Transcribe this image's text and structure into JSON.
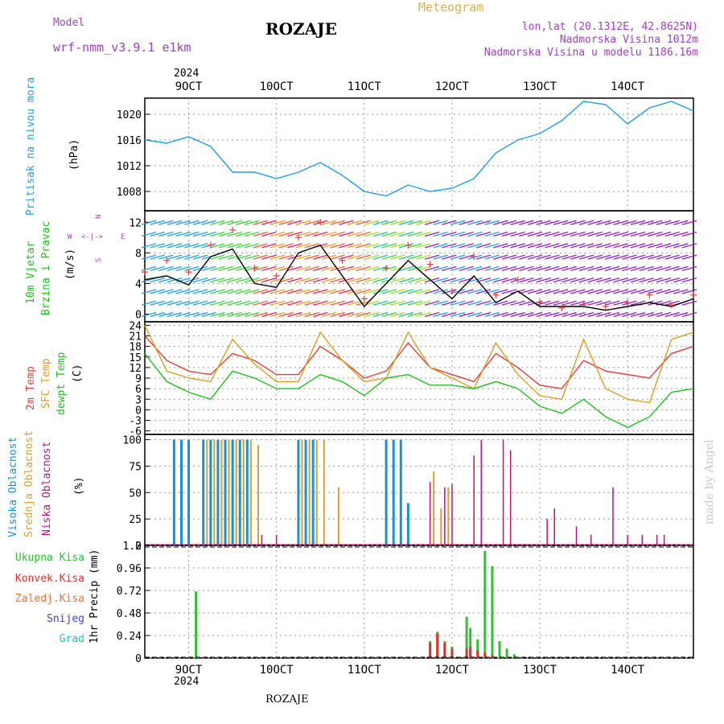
{
  "header": {
    "model_label": "Model",
    "model_name": "wrf-nmm_v3.9.1  e1km",
    "title": "ROZAJE",
    "meteogram_label": "Meteogram",
    "lonlat": "lon,lat (20.1312E, 42.8625N)",
    "altitude": "Nadmorska Visina 1012m",
    "model_altitude": "Nadmorska Visina u modelu 1186.16m",
    "footer_title": "ROZAJE",
    "credit": "made by Angel"
  },
  "colors": {
    "pressure": "#1fa0e0",
    "wind_speed_line": "#000000",
    "temp_2m": "#e04040",
    "sfc_temp": "#d8a020",
    "dewpt": "#20c020",
    "high_cloud": "#1890d8",
    "mid_cloud": "#d8a030",
    "low_cloud": "#c01080",
    "total_precip": "#30c030",
    "convective_precip": "#e03030",
    "label_purple": "#a040c0",
    "label_gold": "#e0b040"
  },
  "time_axis": {
    "year": "2024",
    "days": [
      "9OCT",
      "10OCT",
      "11OCT",
      "12OCT",
      "13OCT",
      "14OCT"
    ],
    "hours_from_9oct_start": "",
    "start": "2024-10-08 12:00",
    "end": "2024-10-14 18:00"
  },
  "chart_data": [
    {
      "type": "line",
      "panel": "pressure",
      "ylabel_1": "Pritisak na nivou mora",
      "ylabel_2": "(hPa)",
      "ylim": [
        1005,
        1022.5
      ],
      "yticks": [
        1008,
        1012,
        1016,
        1020
      ],
      "grid": true,
      "series": [
        {
          "name": "",
          "x": [
            "10-08 12:00",
            "10-08 18:00",
            "10-09 00:00",
            "10-09 06:00",
            "10-09 12:00",
            "10-09 18:00",
            "10-10 00:00",
            "10-10 06:00",
            "10-10 12:00",
            "10-10 18:00",
            "10-11 00:00",
            "10-11 06:00",
            "10-11 12:00",
            "10-11 18:00",
            "10-12 00:00",
            "10-12 06:00",
            "10-12 12:00",
            "10-12 18:00",
            "10-13 00:00",
            "10-13 06:00",
            "10-13 12:00",
            "10-13 18:00",
            "10-14 00:00",
            "10-14 06:00",
            "10-14 12:00",
            "10-14 18:00"
          ],
          "y": [
            1016,
            1015.5,
            1016.5,
            1015,
            1011,
            1011,
            1010,
            1011,
            1012.5,
            1010.5,
            1008,
            1007.3,
            1009,
            1008,
            1008.5,
            1010,
            1014,
            1016,
            1017,
            1019,
            1022,
            1021.5,
            1018.5,
            1021,
            1022,
            1020.5
          ]
        }
      ]
    },
    {
      "type": "line",
      "panel": "wind",
      "ylabel_1": "10m Vjetar",
      "ylabel_2": "Brzina i Pravac",
      "ylabel_3": "(m/s)",
      "compass": [
        "N",
        "W",
        "E",
        "S"
      ],
      "ylim": [
        -1,
        13.5
      ],
      "yticks": [
        0,
        4,
        8,
        12
      ],
      "grid": true,
      "series": [
        {
          "name": "",
          "x": [
            "10-08 12:00",
            "10-08 18:00",
            "10-09 00:00",
            "10-09 06:00",
            "10-09 12:00",
            "10-09 18:00",
            "10-10 00:00",
            "10-10 06:00",
            "10-10 12:00",
            "10-10 18:00",
            "10-11 00:00",
            "10-11 06:00",
            "10-11 12:00",
            "10-11 18:00",
            "10-12 00:00",
            "10-12 06:00",
            "10-12 12:00",
            "10-12 18:00",
            "10-13 00:00",
            "10-13 06:00",
            "10-13 12:00",
            "10-13 18:00",
            "10-14 00:00",
            "10-14 06:00",
            "10-14 12:00",
            "10-14 18:00"
          ],
          "y": [
            4.5,
            5.0,
            3.8,
            7.5,
            8.5,
            4.0,
            3.5,
            8.0,
            9.0,
            5.0,
            1.0,
            4.0,
            7.0,
            4.5,
            2.0,
            5.0,
            1.5,
            3.0,
            1.0,
            1.0,
            1.0,
            0.5,
            1.0,
            1.5,
            1.0,
            2.0
          ]
        },
        {
          "name": "",
          "marker": "plus",
          "x": [
            "10-08 12:00",
            "10-08 18:00",
            "10-09 00:00",
            "10-09 06:00",
            "10-09 12:00",
            "10-09 18:00",
            "10-10 00:00",
            "10-10 06:00",
            "10-10 12:00",
            "10-10 18:00",
            "10-11 00:00",
            "10-11 06:00",
            "10-11 12:00",
            "10-11 18:00",
            "10-12 00:00",
            "10-12 06:00",
            "10-12 12:00",
            "10-12 18:00",
            "10-13 00:00",
            "10-13 06:00",
            "10-13 12:00",
            "10-13 18:00",
            "10-14 00:00",
            "10-14 06:00",
            "10-14 12:00",
            "10-14 18:00"
          ],
          "y": [
            5.5,
            7.0,
            5.5,
            9.0,
            11.0,
            6.0,
            5.0,
            10.0,
            12.0,
            7.0,
            2.0,
            6.0,
            9.0,
            6.5,
            3.0,
            7.5,
            2.5,
            4.5,
            1.5,
            0.8,
            1.2,
            1.0,
            1.5,
            2.5,
            1.2,
            2.5
          ]
        }
      ]
    },
    {
      "type": "line",
      "panel": "temperature",
      "ylabel_1": "2m Temp",
      "ylabel_2": "SFC Temp",
      "ylabel_3": "dewpt Temp",
      "ylabel_4": "(C)",
      "ylim": [
        -7,
        25
      ],
      "yticks": [
        -6,
        -3,
        0,
        3,
        6,
        9,
        12,
        15,
        18,
        21,
        24
      ],
      "grid": true,
      "series": [
        {
          "name": "2m Temp",
          "x": [
            "10-08 12:00",
            "10-08 18:00",
            "10-09 00:00",
            "10-09 06:00",
            "10-09 12:00",
            "10-09 18:00",
            "10-10 00:00",
            "10-10 06:00",
            "10-10 12:00",
            "10-10 18:00",
            "10-11 00:00",
            "10-11 06:00",
            "10-11 12:00",
            "10-11 18:00",
            "10-12 00:00",
            "10-12 06:00",
            "10-12 12:00",
            "10-12 18:00",
            "10-13 00:00",
            "10-13 06:00",
            "10-13 12:00",
            "10-13 18:00",
            "10-14 00:00",
            "10-14 06:00",
            "10-14 12:00",
            "10-14 18:00"
          ],
          "y": [
            21,
            14,
            11,
            10,
            16,
            14,
            10,
            10,
            18,
            14,
            9,
            11,
            19,
            12,
            10,
            8,
            16,
            12,
            7,
            6,
            14,
            11,
            10,
            9,
            16,
            18
          ]
        },
        {
          "name": "SFC Temp",
          "x": [
            "10-08 12:00",
            "10-08 18:00",
            "10-09 00:00",
            "10-09 06:00",
            "10-09 12:00",
            "10-09 18:00",
            "10-10 00:00",
            "10-10 06:00",
            "10-10 12:00",
            "10-10 18:00",
            "10-11 00:00",
            "10-11 06:00",
            "10-11 12:00",
            "10-11 18:00",
            "10-12 00:00",
            "10-12 06:00",
            "10-12 12:00",
            "10-12 18:00",
            "10-13 00:00",
            "10-13 06:00",
            "10-13 12:00",
            "10-13 18:00",
            "10-14 00:00",
            "10-14 06:00",
            "10-14 12:00",
            "10-14 18:00"
          ],
          "y": [
            24,
            11,
            9,
            8,
            20,
            13,
            8,
            8,
            22,
            14,
            8,
            9,
            22,
            12,
            9,
            6,
            19,
            10,
            4,
            3,
            20,
            6,
            3,
            2,
            20,
            22
          ]
        },
        {
          "name": "dewpt Temp",
          "x": [
            "10-08 12:00",
            "10-08 18:00",
            "10-09 00:00",
            "10-09 06:00",
            "10-09 12:00",
            "10-09 18:00",
            "10-10 00:00",
            "10-10 06:00",
            "10-10 12:00",
            "10-10 18:00",
            "10-11 00:00",
            "10-11 06:00",
            "10-11 12:00",
            "10-11 18:00",
            "10-12 00:00",
            "10-12 06:00",
            "10-12 12:00",
            "10-12 18:00",
            "10-13 00:00",
            "10-13 06:00",
            "10-13 12:00",
            "10-13 18:00",
            "10-14 00:00",
            "10-14 06:00",
            "10-14 12:00",
            "10-14 18:00"
          ],
          "y": [
            16,
            8,
            5,
            3,
            11,
            9,
            6,
            6,
            10,
            8,
            4,
            9,
            10,
            7,
            7,
            6,
            8,
            6,
            1,
            -1,
            3,
            -2,
            -5,
            -2,
            5,
            6
          ]
        }
      ]
    },
    {
      "type": "bar",
      "panel": "clouds",
      "ylabel_1": "Visoka Oblacnost",
      "ylabel_2": "Srednja Oblacnost",
      "ylabel_3": "Niska Oblacnost",
      "ylabel_4": "(%)",
      "ylim": [
        0,
        105
      ],
      "yticks": [
        0,
        25,
        50,
        75,
        100
      ],
      "grid": true,
      "series": [
        {
          "name": "Visoka Oblacnost",
          "x": [
            "10-08 20:00",
            "10-08 22:00",
            "10-09 00:00",
            "10-09 04:00",
            "10-09 06:00",
            "10-09 08:00",
            "10-09 10:00",
            "10-09 12:00",
            "10-09 14:00",
            "10-09 16:00",
            "10-10 06:00",
            "10-10 08:00",
            "10-10 10:00",
            "10-11 06:00",
            "10-11 08:00",
            "10-11 10:00",
            "10-11 12:00"
          ],
          "y": [
            100,
            100,
            100,
            100,
            100,
            100,
            100,
            100,
            100,
            100,
            100,
            100,
            100,
            100,
            100,
            100,
            40
          ]
        },
        {
          "name": "Srednja Oblacnost",
          "x": [
            "10-09 05:00",
            "10-09 07:00",
            "10-09 09:00",
            "10-09 11:00",
            "10-09 13:00",
            "10-09 15:00",
            "10-09 17:00",
            "10-09 19:00",
            "10-10 07:00",
            "10-10 09:00",
            "10-10 11:00",
            "10-10 13:00",
            "10-10 17:00",
            "10-11 19:00",
            "10-11 21:00",
            "10-11 23:00"
          ],
          "y": [
            100,
            100,
            100,
            100,
            100,
            100,
            100,
            95,
            100,
            100,
            100,
            100,
            55,
            70,
            35,
            55
          ]
        },
        {
          "name": "Niska Oblacnost",
          "x": [
            "10-09 20:00",
            "10-10 00:00",
            "10-11 18:00",
            "10-11 22:00",
            "10-12 00:00",
            "10-12 06:00",
            "10-12 08:00",
            "10-12 14:00",
            "10-12 16:00",
            "10-13 02:00",
            "10-13 04:00",
            "10-13 10:00",
            "10-13 14:00",
            "10-13 20:00",
            "10-14 00:00",
            "10-14 04:00",
            "10-14 08:00",
            "10-14 10:00"
          ],
          "y": [
            10,
            10,
            60,
            55,
            58,
            85,
            100,
            100,
            90,
            25,
            35,
            18,
            10,
            55,
            10,
            10,
            10,
            10
          ]
        }
      ]
    },
    {
      "type": "bar",
      "panel": "precip",
      "ylabel_1": "1hr Precip (mm)",
      "legend": [
        "Ukupna  Kisa",
        "Konvek.Kisa",
        "Zaledj.Kisa",
        "Snijeg",
        "Grad"
      ],
      "ylim": [
        0,
        1.2
      ],
      "yticks": [
        0,
        0.24,
        0.48,
        0.72,
        0.96,
        1.2
      ],
      "grid": true,
      "series": [
        {
          "name": "Ukupna  Kisa",
          "x": [
            "10-09 02:00",
            "10-11 18:00",
            "10-11 20:00",
            "10-11 22:00",
            "10-12 00:00",
            "10-12 04:00",
            "10-12 05:00",
            "10-12 07:00",
            "10-12 09:00",
            "10-12 11:00",
            "10-12 13:00",
            "10-12 15:00",
            "10-12 17:00"
          ],
          "y": [
            0.71,
            0.18,
            0.28,
            0.18,
            0.12,
            0.44,
            0.32,
            0.2,
            1.14,
            0.98,
            0.18,
            0.1,
            0.04
          ]
        },
        {
          "name": "Konvek.Kisa",
          "x": [
            "10-11 18:00",
            "10-11 20:00",
            "10-11 22:00",
            "10-12 00:00",
            "10-12 04:00",
            "10-12 05:00",
            "10-12 07:00",
            "10-12 09:00",
            "10-12 11:00"
          ],
          "y": [
            0.16,
            0.26,
            0.16,
            0.1,
            0.1,
            0.12,
            0.08,
            0.06,
            0.03
          ]
        }
      ]
    }
  ]
}
